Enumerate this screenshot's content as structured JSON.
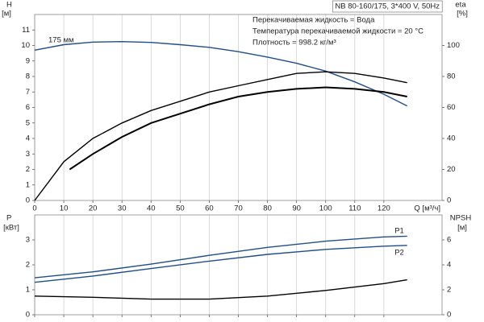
{
  "chart_data": [
    {
      "type": "line",
      "title": "NB 80-160/175, 3*400 V, 50Hz",
      "annotations": [
        "Перекачиваемая жидкость = Вода",
        "Температура перекачиваемой жидкости = 20 °C",
        "Плотность = 998.2 кг/м³"
      ],
      "y_label": "H",
      "y_unit": "[м]",
      "y2_label": "eta",
      "y2_unit": "[%]",
      "x_label": "Q [м³/ч]",
      "xlim": [
        0,
        140
      ],
      "xticks": [
        0,
        10,
        20,
        30,
        40,
        50,
        60,
        70,
        80,
        90,
        100,
        110,
        120
      ],
      "ylim": [
        0,
        12
      ],
      "yticks": [
        0,
        1,
        2,
        3,
        4,
        5,
        6,
        7,
        8,
        9,
        10,
        11
      ],
      "y2lim": [
        0,
        120
      ],
      "y2ticks": [
        0,
        20,
        40,
        60,
        80,
        100
      ],
      "grid": true,
      "series": [
        {
          "name": "175 мм",
          "color": "#1f4e8c",
          "x": [
            0,
            10,
            20,
            30,
            40,
            50,
            60,
            70,
            80,
            90,
            100,
            110,
            120,
            128
          ],
          "values": [
            9.7,
            10.05,
            10.22,
            10.25,
            10.2,
            10.05,
            9.88,
            9.6,
            9.25,
            8.85,
            8.35,
            7.65,
            6.85,
            6.1
          ]
        },
        {
          "color": "#000000",
          "axis": "y2",
          "x": [
            0,
            10,
            20,
            30,
            40,
            50,
            60,
            70,
            80,
            90,
            100,
            110,
            120,
            128
          ],
          "values": [
            0,
            25,
            40,
            50,
            58,
            64,
            70,
            74,
            78,
            82,
            83,
            82,
            79,
            76
          ]
        },
        {
          "color": "#000000",
          "axis": "y2",
          "x": [
            12,
            20,
            30,
            40,
            50,
            60,
            70,
            80,
            90,
            100,
            110,
            120,
            128
          ],
          "values": [
            20,
            30,
            41,
            50,
            56,
            62,
            67,
            70,
            72,
            73,
            72,
            70,
            67
          ]
        }
      ]
    },
    {
      "type": "line",
      "y_label": "P",
      "y_unit": "[кВт]",
      "y2_label": "NPSH",
      "y2_unit": "[м]",
      "xlim": [
        0,
        140
      ],
      "xticks": [
        0,
        10,
        20,
        30,
        40,
        50,
        60,
        70,
        80,
        90,
        100,
        110,
        120
      ],
      "ylim": [
        0,
        4
      ],
      "yticks": [
        0,
        1,
        2,
        3
      ],
      "y2lim": [
        0,
        8
      ],
      "y2ticks": [
        0,
        2,
        4,
        6
      ],
      "grid": true,
      "series": [
        {
          "name": "P1",
          "color": "#1f4e8c",
          "x": [
            0,
            20,
            40,
            60,
            80,
            100,
            120,
            128
          ],
          "values": [
            1.48,
            1.72,
            2.03,
            2.38,
            2.7,
            2.95,
            3.12,
            3.15
          ]
        },
        {
          "name": "P2",
          "color": "#1f4e8c",
          "x": [
            0,
            20,
            40,
            60,
            80,
            100,
            120,
            128
          ],
          "values": [
            1.3,
            1.55,
            1.85,
            2.15,
            2.42,
            2.62,
            2.75,
            2.78
          ]
        },
        {
          "color": "#000000",
          "axis": "y2",
          "x": [
            0,
            20,
            40,
            60,
            80,
            100,
            120,
            128
          ],
          "values": [
            1.5,
            1.4,
            1.25,
            1.25,
            1.5,
            1.95,
            2.5,
            2.8
          ]
        }
      ]
    }
  ]
}
